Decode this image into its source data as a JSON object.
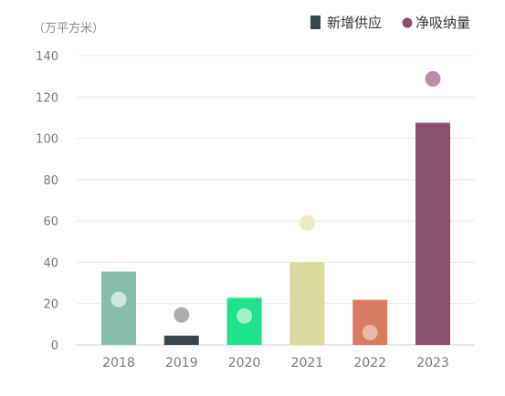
{
  "chart_data": {
    "type": "bar",
    "unit_label": "（万平方米）",
    "categories": [
      "2018",
      "2019",
      "2020",
      "2021",
      "2022",
      "2023"
    ],
    "series": [
      {
        "name": "新增供应",
        "kind": "bar",
        "values": [
          35.5,
          4.5,
          22.8,
          40.0,
          21.8,
          107.5
        ],
        "bar_colors": [
          "#85beac",
          "#3a4649",
          "#1fe28c",
          "#dad99c",
          "#d77c63",
          "#8a4e6e"
        ]
      },
      {
        "name": "净吸纳量",
        "kind": "dot",
        "values": [
          22.0,
          14.5,
          14.0,
          59.0,
          6.0,
          128.8
        ],
        "dot_colors": [
          "#d1e7df",
          "#aeaeae",
          "#a4f0cb",
          "#ecebc4",
          "#eeb6a7",
          "#bb8da7"
        ]
      }
    ],
    "yticks": [
      0,
      20,
      40,
      60,
      80,
      100,
      120,
      140
    ],
    "ylim": [
      0,
      140
    ],
    "grid": true,
    "legend": {
      "position": "top-right",
      "bar_label": "新增供应",
      "bar_color": "#37474b",
      "dot_label": "净吸纳量",
      "dot_color": "#8a4e6e"
    }
  }
}
